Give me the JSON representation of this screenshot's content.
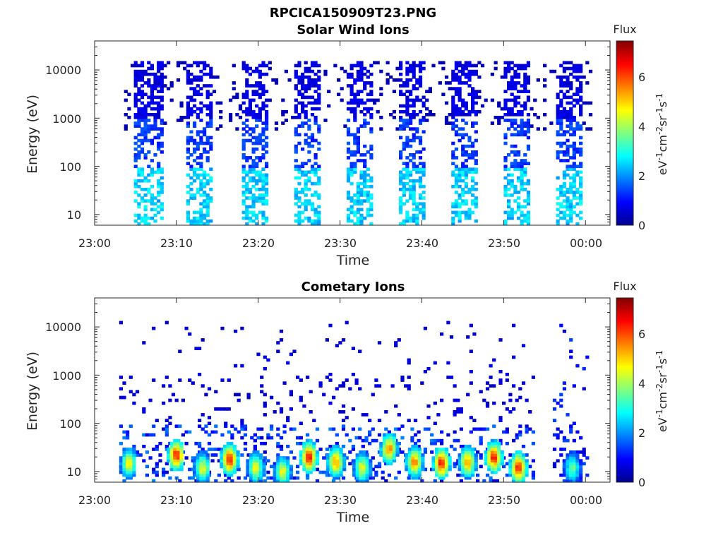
{
  "figure_title": "RPCICA150909T23.PNG",
  "colorbar": {
    "title": "Flux",
    "unit_label": "eV-1cm-2sr-1s-1",
    "ticks": [
      "0",
      "2",
      "4",
      "6"
    ],
    "range": [
      0,
      7.4
    ],
    "colormap": "jet"
  },
  "chart_data": [
    {
      "type": "heatmap",
      "title": "Solar Wind Ions",
      "xlabel": "Time",
      "ylabel": "Energy (eV)",
      "y_scale": "log",
      "x_range": [
        "23:00",
        "00:03"
      ],
      "y_range": [
        6,
        40000
      ],
      "x_ticks": [
        "23:00",
        "23:10",
        "23:20",
        "23:30",
        "23:40",
        "23:50",
        "00:00"
      ],
      "y_ticks": [
        "10",
        "100",
        "1000",
        "10000"
      ],
      "value_range": [
        0,
        7.4
      ],
      "scan_bursts": [
        {
          "start": "23:04.8",
          "end": "23:08.1"
        },
        {
          "start": "23:11.2",
          "end": "23:14.4"
        },
        {
          "start": "23:17.6",
          "end": "23:20.8"
        },
        {
          "start": "23:24.0",
          "end": "23:27.2"
        },
        {
          "start": "23:30.4",
          "end": "23:33.6"
        },
        {
          "start": "23:36.8",
          "end": "23:40.0"
        },
        {
          "start": "23:43.2",
          "end": "23:46.4"
        },
        {
          "start": "23:49.6",
          "end": "23:52.8"
        },
        {
          "start": "23:56.0",
          "end": "23:59.2"
        }
      ],
      "typical_flux": {
        "above_1000_eV": 0.5,
        "100_to_1000_eV": 1.0,
        "below_100_eV": 2.0
      },
      "peak_flux": 3.0
    },
    {
      "type": "heatmap",
      "title": "Cometary Ions",
      "xlabel": "Time",
      "ylabel": "Energy (eV)",
      "y_scale": "log",
      "x_range": [
        "23:00",
        "00:03"
      ],
      "y_range": [
        6,
        40000
      ],
      "x_ticks": [
        "23:00",
        "23:10",
        "23:20",
        "23:30",
        "23:40",
        "23:50",
        "00:00"
      ],
      "y_ticks": [
        "10",
        "100",
        "1000",
        "10000"
      ],
      "value_range": [
        0,
        7.4
      ],
      "low_energy_peaks": [
        {
          "time": "23:04.0",
          "energy_eV": 15,
          "flux": 5
        },
        {
          "time": "23:09.8",
          "energy_eV": 22,
          "flux": 7
        },
        {
          "time": "23:13.0",
          "energy_eV": 12,
          "flux": 5
        },
        {
          "time": "23:16.3",
          "energy_eV": 18,
          "flux": 7
        },
        {
          "time": "23:19.5",
          "energy_eV": 12,
          "flux": 5
        },
        {
          "time": "23:22.8",
          "energy_eV": 10,
          "flux": 5
        },
        {
          "time": "23:26.0",
          "energy_eV": 20,
          "flux": 7
        },
        {
          "time": "23:29.3",
          "energy_eV": 16,
          "flux": 6
        },
        {
          "time": "23:32.5",
          "energy_eV": 12,
          "flux": 5
        },
        {
          "time": "23:35.8",
          "energy_eV": 30,
          "flux": 6
        },
        {
          "time": "23:38.9",
          "energy_eV": 16,
          "flux": 6
        },
        {
          "time": "23:42.2",
          "energy_eV": 15,
          "flux": 7
        },
        {
          "time": "23:45.4",
          "energy_eV": 16,
          "flux": 6
        },
        {
          "time": "23:48.6",
          "energy_eV": 20,
          "flux": 7
        },
        {
          "time": "23:51.6",
          "energy_eV": 12,
          "flux": 7
        },
        {
          "time": "23:58.2",
          "energy_eV": 12,
          "flux": 4
        }
      ],
      "background_flux": 0.5
    }
  ]
}
